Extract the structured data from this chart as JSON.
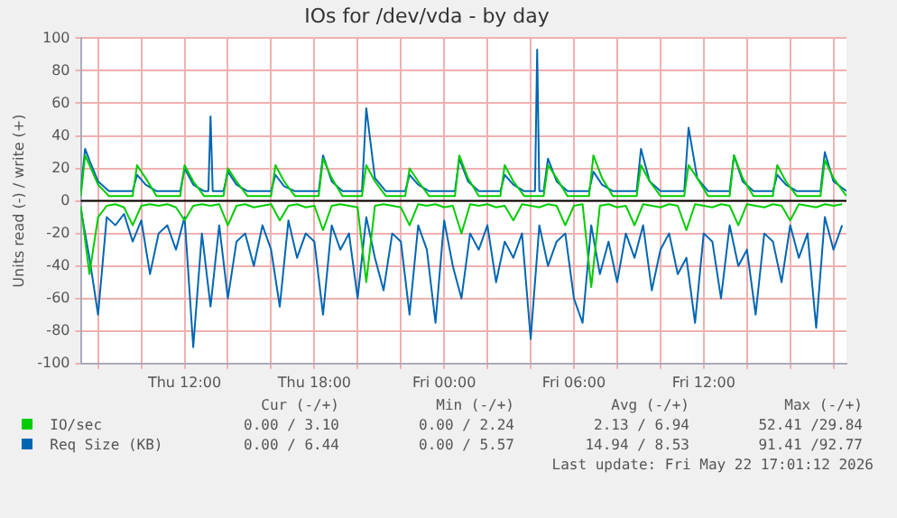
{
  "chart_data": {
    "type": "line",
    "title": "IOs for /dev/vda - by day",
    "ylabel": "Units read (-) / write (+)",
    "xlim": [
      "2026-05-21T07:12",
      "2026-05-22T18:36"
    ],
    "xticks": [
      {
        "value": "2026-05-21T08:00",
        "label": null
      },
      {
        "value": "2026-05-21T10:00",
        "label": null
      },
      {
        "value": "2026-05-21T12:00",
        "label": "Thu 12:00"
      },
      {
        "value": "2026-05-21T14:00",
        "label": null
      },
      {
        "value": "2026-05-21T16:00",
        "label": null
      },
      {
        "value": "2026-05-21T18:00",
        "label": "Thu 18:00"
      },
      {
        "value": "2026-05-21T20:00",
        "label": null
      },
      {
        "value": "2026-05-21T22:00",
        "label": null
      },
      {
        "value": "2026-05-22T00:00",
        "label": "Fri 00:00"
      },
      {
        "value": "2026-05-22T02:00",
        "label": null
      },
      {
        "value": "2026-05-22T04:00",
        "label": null
      },
      {
        "value": "2026-05-22T06:00",
        "label": "Fri 06:00"
      },
      {
        "value": "2026-05-22T08:00",
        "label": null
      },
      {
        "value": "2026-05-22T10:00",
        "label": null
      },
      {
        "value": "2026-05-22T12:00",
        "label": "Fri 12:00"
      },
      {
        "value": "2026-05-22T14:00",
        "label": null
      },
      {
        "value": "2026-05-22T16:00",
        "label": null
      },
      {
        "value": "2026-05-22T18:00",
        "label": null
      }
    ],
    "ylim": [
      -100,
      100
    ],
    "yticks": [
      -100,
      -80,
      -60,
      -40,
      -20,
      0,
      20,
      40,
      60,
      80,
      100
    ],
    "grid": true,
    "legend": "bottom",
    "marker": "none",
    "line_style": "solid",
    "ref_lines": [
      {
        "axis": "y",
        "value": 0,
        "color": "#000000"
      }
    ],
    "x": [
      "2026-05-21T07:12",
      "2026-05-21T07:36",
      "2026-05-21T08:00",
      "2026-05-21T08:24",
      "2026-05-21T08:48",
      "2026-05-21T09:12",
      "2026-05-21T09:36",
      "2026-05-21T10:00",
      "2026-05-21T10:24",
      "2026-05-21T10:48",
      "2026-05-21T11:12",
      "2026-05-21T11:36",
      "2026-05-21T12:00",
      "2026-05-21T12:24",
      "2026-05-21T12:48",
      "2026-05-21T13:12",
      "2026-05-21T13:36",
      "2026-05-21T14:00",
      "2026-05-21T14:24",
      "2026-05-21T14:48",
      "2026-05-21T15:12",
      "2026-05-21T15:36",
      "2026-05-21T16:00",
      "2026-05-21T16:24",
      "2026-05-21T16:48",
      "2026-05-21T17:12",
      "2026-05-21T17:36",
      "2026-05-21T18:00",
      "2026-05-21T18:24",
      "2026-05-21T18:48",
      "2026-05-21T19:12",
      "2026-05-21T19:36",
      "2026-05-21T20:00",
      "2026-05-21T20:24",
      "2026-05-21T20:48",
      "2026-05-21T21:12",
      "2026-05-21T21:36",
      "2026-05-21T22:00",
      "2026-05-21T22:24",
      "2026-05-21T22:48",
      "2026-05-21T23:12",
      "2026-05-21T23:36",
      "2026-05-22T00:00",
      "2026-05-22T00:24",
      "2026-05-22T00:48",
      "2026-05-22T01:12",
      "2026-05-22T01:36",
      "2026-05-22T02:00",
      "2026-05-22T02:24",
      "2026-05-22T02:48",
      "2026-05-22T03:12",
      "2026-05-22T03:36",
      "2026-05-22T04:00",
      "2026-05-22T04:24",
      "2026-05-22T04:48",
      "2026-05-22T05:12",
      "2026-05-22T05:36",
      "2026-05-22T06:00",
      "2026-05-22T06:24",
      "2026-05-22T06:48",
      "2026-05-22T07:12",
      "2026-05-22T07:36",
      "2026-05-22T08:00",
      "2026-05-22T08:24",
      "2026-05-22T08:48",
      "2026-05-22T09:12",
      "2026-05-22T09:36",
      "2026-05-22T10:00",
      "2026-05-22T10:24",
      "2026-05-22T10:48",
      "2026-05-22T11:12",
      "2026-05-22T11:36",
      "2026-05-22T12:00",
      "2026-05-22T12:24",
      "2026-05-22T12:48",
      "2026-05-22T13:12",
      "2026-05-22T13:36",
      "2026-05-22T14:00",
      "2026-05-22T14:24",
      "2026-05-22T14:48",
      "2026-05-22T15:12",
      "2026-05-22T15:36",
      "2026-05-22T16:00",
      "2026-05-22T16:24",
      "2026-05-22T16:48",
      "2026-05-22T17:12",
      "2026-05-22T17:36",
      "2026-05-22T18:00",
      "2026-05-22T18:24"
    ],
    "series": [
      {
        "color": "#00cc00",
        "values": [
          -3,
          -45,
          -10,
          -3,
          -2,
          -4,
          -15,
          -3,
          -2,
          -3,
          -2,
          -4,
          -12,
          -3,
          -2,
          -3,
          -2,
          -15,
          -3,
          -2,
          -4,
          -3,
          -2,
          -12,
          -3,
          -2,
          -4,
          -3,
          -18,
          -3,
          -2,
          -3,
          -4,
          -50,
          -3,
          -2,
          -3,
          -4,
          -15,
          -2,
          -3,
          -2,
          -4,
          -3,
          -20,
          -2,
          -3,
          -2,
          -4,
          -3,
          -12,
          -2,
          -3,
          -4,
          -2,
          -3,
          -15,
          -3,
          -2,
          -53,
          -3,
          -2,
          -4,
          -3,
          -15,
          -2,
          -3,
          -4,
          -2,
          -3,
          -18,
          -2,
          -3,
          -4,
          -2,
          -3,
          -15,
          -2,
          -3,
          -4,
          -2,
          -3,
          -12,
          -2,
          -3,
          -4,
          -2,
          -3,
          -2
        ]
      },
      {
        "color": "#0066b3",
        "values": [
          -5,
          -35,
          -70,
          -10,
          -15,
          -8,
          -25,
          -12,
          -45,
          -20,
          -15,
          -30,
          -10,
          -90,
          -20,
          -65,
          -15,
          -60,
          -25,
          -20,
          -40,
          -15,
          -30,
          -65,
          -12,
          -35,
          -20,
          -25,
          -70,
          -15,
          -30,
          -20,
          -60,
          -10,
          -35,
          -55,
          -20,
          -25,
          -70,
          -15,
          -30,
          -75,
          -12,
          -40,
          -60,
          -20,
          -30,
          -15,
          -50,
          -25,
          -35,
          -20,
          -85,
          -15,
          -40,
          -25,
          -20,
          -60,
          -75,
          -15,
          -45,
          -25,
          -50,
          -20,
          -35,
          -15,
          -55,
          -30,
          -20,
          -45,
          -35,
          -75,
          -20,
          -25,
          -60,
          -15,
          -40,
          -30,
          -70,
          -20,
          -25,
          -50,
          -15,
          -35,
          -20,
          -78,
          -10,
          -30,
          -15
        ]
      },
      {
        "name": "IO/sec",
        "color": "#00cc00",
        "x": [
          "2026-05-21T07:12",
          "2026-05-21T07:24",
          "2026-05-21T07:36",
          "2026-05-21T08:00",
          "2026-05-21T08:30",
          "2026-05-21T09:36",
          "2026-05-21T09:48",
          "2026-05-21T10:12",
          "2026-05-21T10:42",
          "2026-05-21T11:48",
          "2026-05-21T12:00",
          "2026-05-21T12:24",
          "2026-05-21T12:54",
          "2026-05-21T13:06",
          "2026-05-21T13:12",
          "2026-05-21T13:18",
          "2026-05-21T13:48",
          "2026-05-21T14:00",
          "2026-05-21T14:24",
          "2026-05-21T14:54",
          "2026-05-21T16:00",
          "2026-05-21T16:12",
          "2026-05-21T16:36",
          "2026-05-21T17:06",
          "2026-05-21T18:12",
          "2026-05-21T18:24",
          "2026-05-21T18:48",
          "2026-05-21T19:18",
          "2026-05-21T20:12",
          "2026-05-21T20:24",
          "2026-05-21T20:48",
          "2026-05-21T21:18",
          "2026-05-21T22:12",
          "2026-05-21T22:24",
          "2026-05-21T22:48",
          "2026-05-21T23:18",
          "2026-05-22T00:30",
          "2026-05-22T00:42",
          "2026-05-22T01:06",
          "2026-05-22T01:36",
          "2026-05-22T02:36",
          "2026-05-22T02:48",
          "2026-05-22T03:12",
          "2026-05-22T03:42",
          "2026-05-22T04:12",
          "2026-05-22T04:18",
          "2026-05-22T04:24",
          "2026-05-22T04:36",
          "2026-05-22T04:48",
          "2026-05-22T05:12",
          "2026-05-22T05:42",
          "2026-05-22T06:42",
          "2026-05-22T06:54",
          "2026-05-22T07:18",
          "2026-05-22T07:48",
          "2026-05-22T08:54",
          "2026-05-22T09:06",
          "2026-05-22T09:30",
          "2026-05-22T10:00",
          "2026-05-22T11:06",
          "2026-05-22T11:18",
          "2026-05-22T11:42",
          "2026-05-22T12:12",
          "2026-05-22T13:12",
          "2026-05-22T13:24",
          "2026-05-22T13:48",
          "2026-05-22T14:18",
          "2026-05-22T15:12",
          "2026-05-22T15:24",
          "2026-05-22T15:48",
          "2026-05-22T16:18",
          "2026-05-22T17:24",
          "2026-05-22T17:36",
          "2026-05-22T18:00",
          "2026-05-22T18:36"
        ],
        "values": [
          3,
          28,
          22,
          10,
          3,
          3,
          22,
          14,
          3,
          3,
          22,
          12,
          3,
          3,
          3,
          3,
          3,
          20,
          12,
          3,
          3,
          22,
          12,
          3,
          3,
          26,
          14,
          3,
          3,
          22,
          12,
          3,
          3,
          20,
          12,
          3,
          3,
          28,
          14,
          3,
          3,
          22,
          12,
          3,
          3,
          3,
          3,
          3,
          22,
          14,
          3,
          3,
          28,
          14,
          3,
          3,
          22,
          12,
          3,
          3,
          22,
          14,
          3,
          3,
          28,
          14,
          3,
          3,
          22,
          12,
          3,
          3,
          25,
          14,
          3
        ]
      },
      {
        "name": "Req Size (KB)",
        "color": "#0066b3",
        "x": [
          "2026-05-21T07:12",
          "2026-05-21T07:24",
          "2026-05-21T07:36",
          "2026-05-21T08:00",
          "2026-05-21T08:30",
          "2026-05-21T09:36",
          "2026-05-21T09:48",
          "2026-05-21T10:12",
          "2026-05-21T10:42",
          "2026-05-21T11:48",
          "2026-05-21T12:00",
          "2026-05-21T12:24",
          "2026-05-21T12:54",
          "2026-05-21T13:06",
          "2026-05-21T13:12",
          "2026-05-21T13:18",
          "2026-05-21T13:48",
          "2026-05-21T14:00",
          "2026-05-21T14:24",
          "2026-05-21T14:54",
          "2026-05-21T16:00",
          "2026-05-21T16:12",
          "2026-05-21T16:36",
          "2026-05-21T17:06",
          "2026-05-21T18:12",
          "2026-05-21T18:24",
          "2026-05-21T18:48",
          "2026-05-21T19:18",
          "2026-05-21T20:12",
          "2026-05-21T20:24",
          "2026-05-21T20:48",
          "2026-05-21T21:18",
          "2026-05-21T22:12",
          "2026-05-21T22:24",
          "2026-05-21T22:48",
          "2026-05-21T23:18",
          "2026-05-22T00:30",
          "2026-05-22T00:42",
          "2026-05-22T01:06",
          "2026-05-22T01:36",
          "2026-05-22T02:36",
          "2026-05-22T02:48",
          "2026-05-22T03:12",
          "2026-05-22T03:42",
          "2026-05-22T04:12",
          "2026-05-22T04:18",
          "2026-05-22T04:24",
          "2026-05-22T04:36",
          "2026-05-22T04:48",
          "2026-05-22T05:12",
          "2026-05-22T05:42",
          "2026-05-22T06:42",
          "2026-05-22T06:54",
          "2026-05-22T07:18",
          "2026-05-22T07:48",
          "2026-05-22T08:54",
          "2026-05-22T09:06",
          "2026-05-22T09:30",
          "2026-05-22T10:00",
          "2026-05-22T11:06",
          "2026-05-22T11:18",
          "2026-05-22T11:42",
          "2026-05-22T12:12",
          "2026-05-22T13:12",
          "2026-05-22T13:24",
          "2026-05-22T13:48",
          "2026-05-22T14:18",
          "2026-05-22T15:12",
          "2026-05-22T15:24",
          "2026-05-22T15:48",
          "2026-05-22T16:18",
          "2026-05-22T17:24",
          "2026-05-22T17:36",
          "2026-05-22T18:00",
          "2026-05-22T18:36"
        ],
        "values": [
          6,
          32,
          25,
          12,
          6,
          6,
          16,
          10,
          6,
          6,
          20,
          10,
          6,
          6,
          52,
          6,
          6,
          18,
          10,
          6,
          6,
          16,
          9,
          6,
          6,
          28,
          12,
          6,
          6,
          57,
          14,
          6,
          6,
          16,
          10,
          6,
          6,
          26,
          12,
          6,
          6,
          16,
          10,
          6,
          6,
          93,
          6,
          6,
          26,
          12,
          6,
          6,
          18,
          10,
          6,
          6,
          32,
          12,
          6,
          6,
          45,
          14,
          6,
          6,
          28,
          12,
          6,
          6,
          16,
          10,
          6,
          6,
          30,
          12,
          6
        ]
      }
    ],
    "annotations": [
      "Cur (-/+)",
      "Min (-/+)",
      "Avg (-/+)",
      "Max (-/+)",
      "0.00 / 3.10",
      "0.00 / 2.24",
      "2.13 / 6.94",
      "52.41 /29.84",
      "0.00 / 6.44",
      "0.00 / 5.57",
      "14.94 / 8.53",
      "91.41 /92.77",
      "Last update: Fri May 22 17:01:12 2026"
    ]
  }
}
